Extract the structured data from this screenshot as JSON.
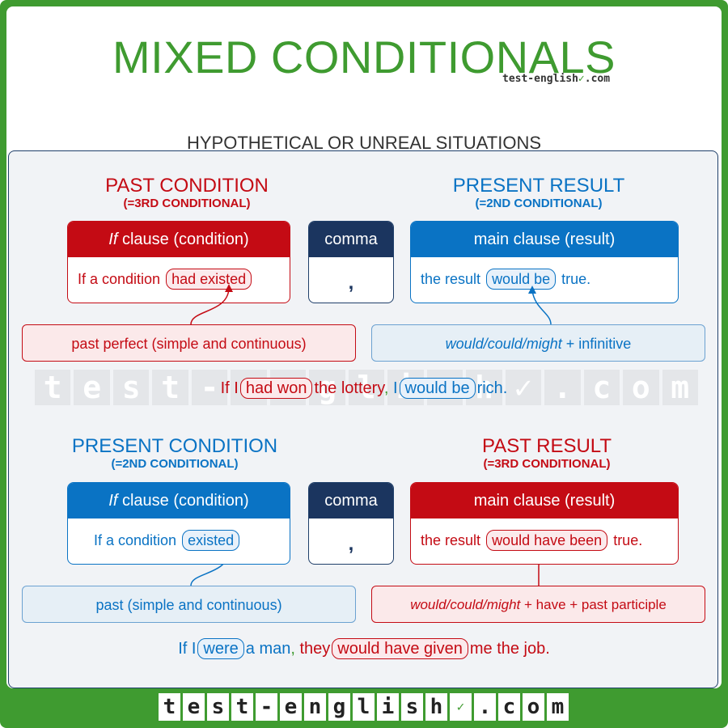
{
  "title": "MIXED CONDITIONALS",
  "brand": {
    "prefix": "test-english",
    "check": "✓",
    "suffix": ".com"
  },
  "subtitle": "HYPOTHETICAL OR UNREAL SITUATIONS",
  "watermark": [
    "t",
    "e",
    "s",
    "t",
    "-",
    "e",
    "n",
    "g",
    "l",
    "i",
    "s",
    "h",
    "✓",
    ".",
    "c",
    "o",
    "m"
  ],
  "section1": {
    "left_header": "PAST CONDITION",
    "left_sub": "(=3RD CONDITIONAL)",
    "right_header": "PRESENT RESULT",
    "right_sub": "(=2ND CONDITIONAL)",
    "if_head_italic": "If",
    "if_head_rest": " clause (condition)",
    "comma_head": "comma",
    "comma_sym": ",",
    "main_head": "main clause (result)",
    "if_body_pre": "If a condition",
    "if_body_pill": "had existed",
    "main_body_pre": "the result",
    "main_body_pill": "would be",
    "main_body_post": "true.",
    "note_left": "past perfect (simple and continuous)",
    "note_right_italic": "would/could/might",
    "note_right_rest": " + infinitive",
    "ex_pre": "If I",
    "ex_pill1": "had won",
    "ex_mid": "the lottery",
    "ex_comma": ",",
    "ex_i": " I",
    "ex_pill2": "would be",
    "ex_post": "rich."
  },
  "section2": {
    "left_header": "PRESENT CONDITION",
    "left_sub": "(=2ND CONDITIONAL)",
    "right_header": "PAST RESULT",
    "right_sub": "(=3RD CONDITIONAL)",
    "if_head_italic": "If",
    "if_head_rest": " clause (condition)",
    "comma_head": "comma",
    "comma_sym": ",",
    "main_head": "main clause (result)",
    "if_body_pre": "If a condition",
    "if_body_pill": "existed",
    "main_body_pre": "the result",
    "main_body_pill": "would have been",
    "main_body_post": "true.",
    "note_left": "past (simple and continuous)",
    "note_right_italic": "would/could/might",
    "note_right_rest": " + have + past participle",
    "ex_pre": "If I",
    "ex_pill1": "were",
    "ex_mid": "a man",
    "ex_comma": ",",
    "ex_they": " they",
    "ex_pill2": "would have given",
    "ex_post": "me the job."
  },
  "footer": [
    "t",
    "e",
    "s",
    "t",
    "-",
    "e",
    "n",
    "g",
    "l",
    "i",
    "s",
    "h",
    "✓",
    ".",
    "c",
    "o",
    "m"
  ],
  "colors": {
    "green": "#3f9b30",
    "red": "#c40b14",
    "blue": "#0a73c4",
    "navy": "#1b355f"
  }
}
